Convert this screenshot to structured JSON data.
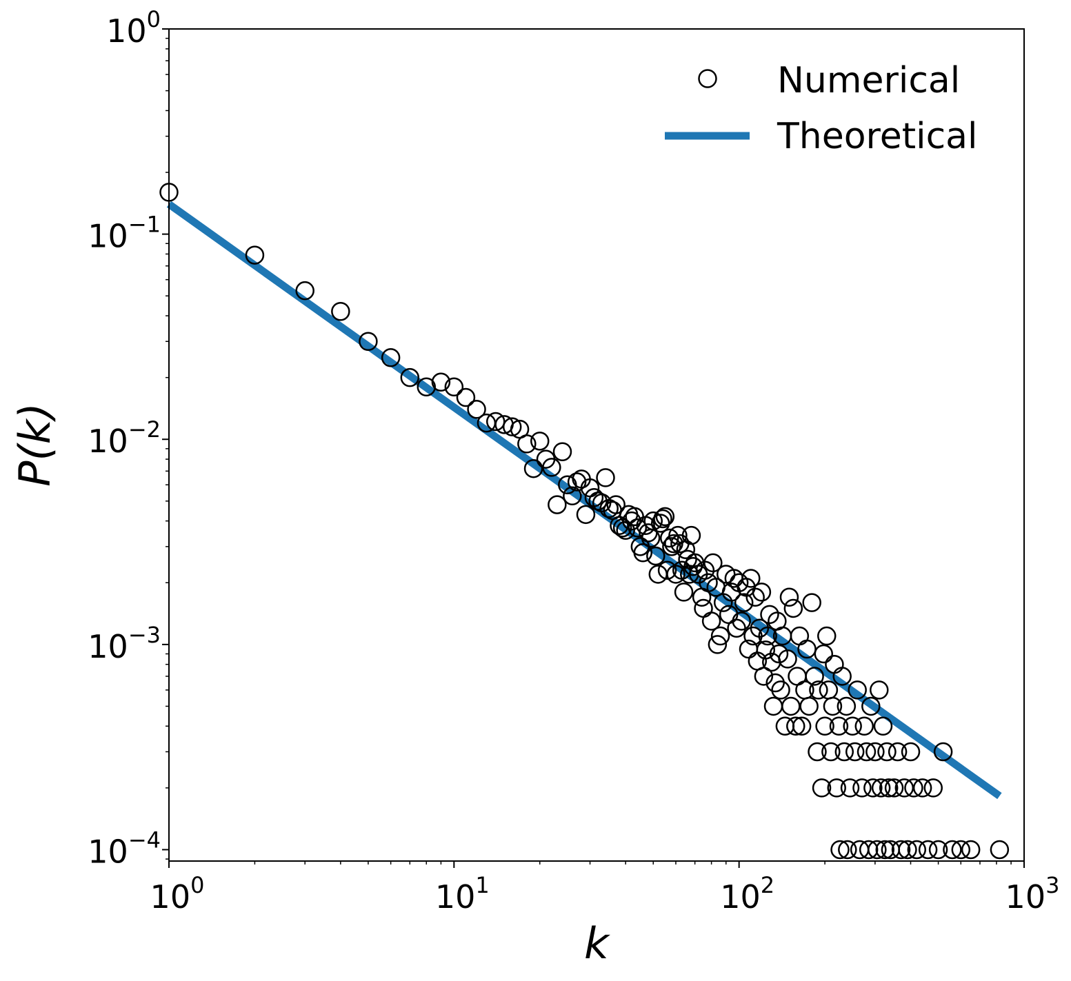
{
  "chart_data": {
    "type": "scatter",
    "title": "",
    "xlabel": "k",
    "ylabel": "P(k)",
    "xscale": "log",
    "yscale": "log",
    "xlim": [
      1,
      1000
    ],
    "ylim": [
      8.8e-05,
      1
    ],
    "grid": false,
    "legend_position": "top-right",
    "x_tick_labels": [
      {
        "value": 1,
        "base": "10",
        "exp": "0"
      },
      {
        "value": 10,
        "base": "10",
        "exp": "1"
      },
      {
        "value": 100,
        "base": "10",
        "exp": "2"
      },
      {
        "value": 1000,
        "base": "10",
        "exp": "3"
      }
    ],
    "y_tick_labels": [
      {
        "value": 1,
        "base": "10",
        "exp": "0"
      },
      {
        "value": 0.1,
        "base": "10",
        "exp": "−1"
      },
      {
        "value": 0.01,
        "base": "10",
        "exp": "−2"
      },
      {
        "value": 0.001,
        "base": "10",
        "exp": "−3"
      },
      {
        "value": 0.0001,
        "base": "10",
        "exp": "−4"
      }
    ],
    "series": [
      {
        "name": "Numerical",
        "style": "open-circle",
        "color": "#000000",
        "points": [
          [
            1,
            0.16
          ],
          [
            2,
            0.079
          ],
          [
            3,
            0.053
          ],
          [
            4,
            0.042
          ],
          [
            5,
            0.03
          ],
          [
            6,
            0.025
          ],
          [
            7,
            0.02
          ],
          [
            8,
            0.018
          ],
          [
            9,
            0.019
          ],
          [
            10,
            0.018
          ],
          [
            11,
            0.016
          ],
          [
            12,
            0.014
          ],
          [
            13,
            0.012
          ],
          [
            14,
            0.0122
          ],
          [
            15,
            0.0118
          ],
          [
            16,
            0.0115
          ],
          [
            17,
            0.0112
          ],
          [
            18,
            0.0095
          ],
          [
            19,
            0.0072
          ],
          [
            20,
            0.0098
          ],
          [
            21,
            0.008
          ],
          [
            22,
            0.0073
          ],
          [
            23,
            0.0048
          ],
          [
            24,
            0.0087
          ],
          [
            25,
            0.006
          ],
          [
            26,
            0.0053
          ],
          [
            27,
            0.0062
          ],
          [
            28,
            0.0064
          ],
          [
            29,
            0.0043
          ],
          [
            30,
            0.0058
          ],
          [
            31,
            0.0052
          ],
          [
            32,
            0.005
          ],
          [
            33,
            0.0049
          ],
          [
            34,
            0.0065
          ],
          [
            35,
            0.0046
          ],
          [
            36,
            0.0045
          ],
          [
            37,
            0.0048
          ],
          [
            38,
            0.0038
          ],
          [
            39,
            0.0037
          ],
          [
            40,
            0.0036
          ],
          [
            41,
            0.0043
          ],
          [
            42,
            0.004
          ],
          [
            43,
            0.0042
          ],
          [
            44,
            0.0037
          ],
          [
            45,
            0.003
          ],
          [
            46,
            0.0028
          ],
          [
            47,
            0.0038
          ],
          [
            48,
            0.0035
          ],
          [
            49,
            0.0033
          ],
          [
            50,
            0.004
          ],
          [
            51,
            0.0027
          ],
          [
            52,
            0.0022
          ],
          [
            53,
            0.0039
          ],
          [
            54,
            0.0041
          ],
          [
            55,
            0.0042
          ],
          [
            56,
            0.0023
          ],
          [
            57,
            0.0033
          ],
          [
            58,
            0.003
          ],
          [
            59,
            0.0031
          ],
          [
            60,
            0.0022
          ],
          [
            61,
            0.0034
          ],
          [
            62,
            0.0031
          ],
          [
            63,
            0.0023
          ],
          [
            64,
            0.0018
          ],
          [
            65,
            0.0029
          ],
          [
            66,
            0.0026
          ],
          [
            67,
            0.0022
          ],
          [
            68,
            0.0034
          ],
          [
            69,
            0.0024
          ],
          [
            70,
            0.0025
          ],
          [
            72,
            0.0022
          ],
          [
            74,
            0.0017
          ],
          [
            75,
            0.0015
          ],
          [
            76,
            0.0023
          ],
          [
            78,
            0.002
          ],
          [
            80,
            0.0013
          ],
          [
            81,
            0.0025
          ],
          [
            83,
            0.0019
          ],
          [
            84,
            0.001
          ],
          [
            86,
            0.0011
          ],
          [
            88,
            0.0016
          ],
          [
            90,
            0.0022
          ],
          [
            92,
            0.0014
          ],
          [
            94,
            0.0018
          ],
          [
            96,
            0.0021
          ],
          [
            98,
            0.0012
          ],
          [
            100,
            0.002
          ],
          [
            102,
            0.0013
          ],
          [
            104,
            0.0016
          ],
          [
            106,
            0.0019
          ],
          [
            108,
            0.00095
          ],
          [
            110,
            0.0021
          ],
          [
            112,
            0.0011
          ],
          [
            114,
            0.0017
          ],
          [
            116,
            0.00083
          ],
          [
            118,
            0.0012
          ],
          [
            120,
            0.0018
          ],
          [
            122,
            0.0007
          ],
          [
            124,
            0.00094
          ],
          [
            126,
            0.0011
          ],
          [
            128,
            0.0014
          ],
          [
            130,
            0.00082
          ],
          [
            132,
            0.0005
          ],
          [
            134,
            0.00065
          ],
          [
            136,
            0.0013
          ],
          [
            138,
            0.0009
          ],
          [
            140,
            0.0006
          ],
          [
            142,
            0.0011
          ],
          [
            145,
            0.0004
          ],
          [
            148,
            0.00085
          ],
          [
            150,
            0.0017
          ],
          [
            152,
            0.0005
          ],
          [
            155,
            0.0015
          ],
          [
            158,
            0.0004
          ],
          [
            160,
            0.0007
          ],
          [
            163,
            0.0011
          ],
          [
            166,
            0.0004
          ],
          [
            170,
            0.0006
          ],
          [
            173,
            0.00095
          ],
          [
            176,
            0.0005
          ],
          [
            180,
            0.0016
          ],
          [
            184,
            0.0007
          ],
          [
            188,
            0.0003
          ],
          [
            190,
            0.0006
          ],
          [
            195,
            0.0002
          ],
          [
            198,
            0.0009
          ],
          [
            200,
            0.0004
          ],
          [
            203,
            0.0011
          ],
          [
            206,
            0.0006
          ],
          [
            210,
            0.0003
          ],
          [
            213,
            0.0005
          ],
          [
            216,
            0.0008
          ],
          [
            220,
            0.0002
          ],
          [
            224,
            0.0004
          ],
          [
            226,
            0.0001
          ],
          [
            230,
            0.0007
          ],
          [
            234,
            0.0003
          ],
          [
            238,
            0.0005
          ],
          [
            240,
            0.0001
          ],
          [
            245,
            0.0002
          ],
          [
            250,
            0.0004
          ],
          [
            255,
            0.0003
          ],
          [
            260,
            0.0006
          ],
          [
            265,
            0.0001
          ],
          [
            270,
            0.0002
          ],
          [
            275,
            0.0004
          ],
          [
            280,
            0.0003
          ],
          [
            285,
            0.0001
          ],
          [
            290,
            0.0005
          ],
          [
            295,
            0.0002
          ],
          [
            300,
            0.0003
          ],
          [
            305,
            0.0001
          ],
          [
            310,
            0.0006
          ],
          [
            315,
            0.0002
          ],
          [
            320,
            0.0004
          ],
          [
            325,
            0.0001
          ],
          [
            330,
            0.0003
          ],
          [
            335,
            0.0002
          ],
          [
            340,
            0.0001
          ],
          [
            350,
            0.0002
          ],
          [
            360,
            0.0003
          ],
          [
            370,
            0.0001
          ],
          [
            380,
            0.0002
          ],
          [
            390,
            0.0001
          ],
          [
            400,
            0.0003
          ],
          [
            410,
            0.0002
          ],
          [
            420,
            0.0001
          ],
          [
            440,
            0.0002
          ],
          [
            460,
            0.0001
          ],
          [
            480,
            0.0002
          ],
          [
            500,
            0.0001
          ],
          [
            520,
            0.0003
          ],
          [
            560,
            0.0001
          ],
          [
            600,
            0.0001
          ],
          [
            650,
            0.0001
          ],
          [
            820,
            0.0001
          ]
        ]
      },
      {
        "name": "Theoretical",
        "style": "line",
        "color": "#1f77b4",
        "x_range": [
          1,
          820
        ],
        "amplitude": 0.14,
        "exponent": -0.99
      }
    ]
  }
}
